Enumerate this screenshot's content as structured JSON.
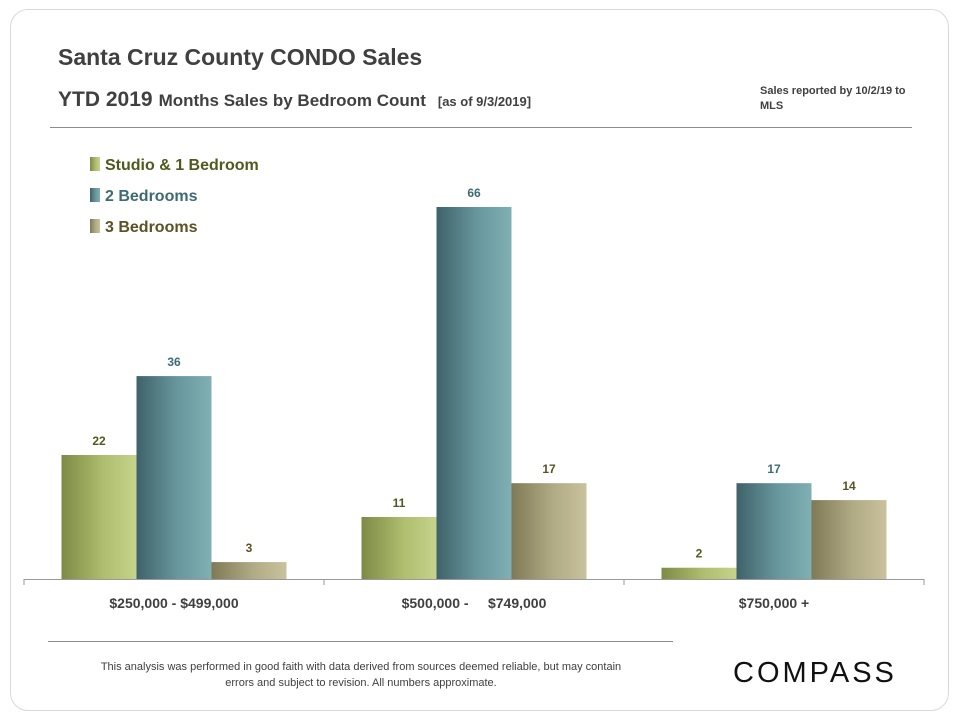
{
  "header": {
    "title": "Santa Cruz County CONDO Sales",
    "subtitle_main": "YTD 2019",
    "subtitle_rest": "Months  Sales by Bedroom Count",
    "subtitle_note": "[as of 9/3/2019]",
    "report_note": "Sales reported by 10/2/19 to MLS"
  },
  "footer": {
    "disclaimer": "This analysis was performed in good faith with data derived from sources deemed reliable, but may contain errors and subject to revision. All numbers approximate.",
    "logo": "COMPASS"
  },
  "colors": {
    "studio": "#a3b06c",
    "two_bed": "#5d8c92",
    "three_bed": "#a39e7b",
    "studio_label": "#4f5a1e",
    "two_bed_label": "#3e6b73",
    "three_bed_label": "#5a5224"
  },
  "chart_data": {
    "type": "bar",
    "categories": [
      "$250,000 - $499,000",
      "$500,000 -     $749,000",
      "$750,000 +"
    ],
    "series": [
      {
        "name": "Studio & 1 Bedroom",
        "values": [
          22,
          11,
          2
        ]
      },
      {
        "name": "2 Bedrooms",
        "values": [
          36,
          66,
          17
        ]
      },
      {
        "name": "3 Bedrooms",
        "values": [
          3,
          17,
          14
        ]
      }
    ],
    "ylim": [
      0,
      66
    ],
    "legend": "top-left",
    "grid": false,
    "data_labels": true
  }
}
